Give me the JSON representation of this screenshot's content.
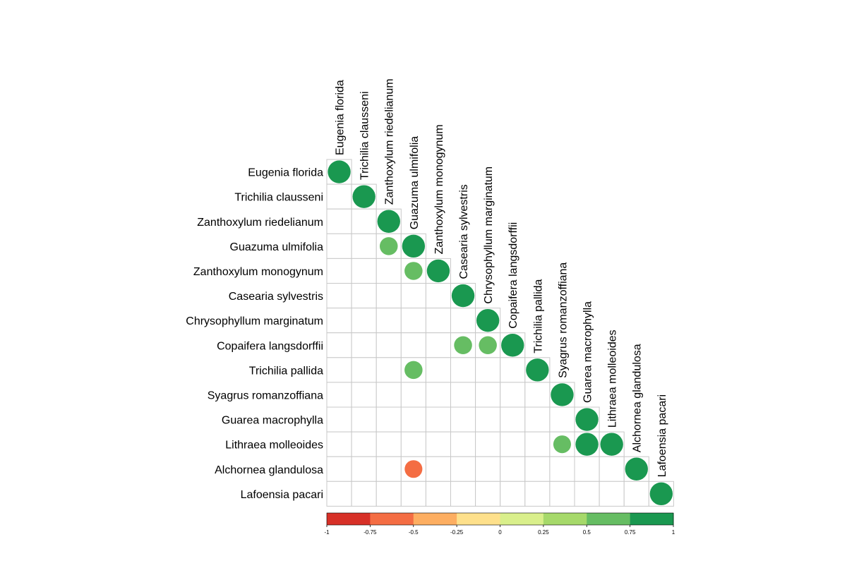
{
  "chart_data": {
    "type": "heatmap",
    "subtype": "correlation-circles-lower-triangle",
    "variables": [
      "Eugenia florida",
      "Trichilia clausseni",
      "Zanthoxylum riedelianum",
      "Guazuma ulmifolia",
      "Zanthoxylum monogynum",
      "Casearia sylvestris",
      "Chrysophyllum marginatum",
      "Copaifera langsdorffii",
      "Trichilia pallida",
      "Syagrus romanzoffiana",
      "Guarea macrophylla",
      "Lithraea molleoides",
      "Alchornea glandulosa",
      "Lafoensia pacari"
    ],
    "cells": [
      {
        "row": "Eugenia florida",
        "col": "Eugenia florida",
        "value": 1.0
      },
      {
        "row": "Trichilia clausseni",
        "col": "Trichilia clausseni",
        "value": 1.0
      },
      {
        "row": "Zanthoxylum riedelianum",
        "col": "Zanthoxylum riedelianum",
        "value": 1.0
      },
      {
        "row": "Guazuma ulmifolia",
        "col": "Zanthoxylum riedelianum",
        "value": 0.62
      },
      {
        "row": "Guazuma ulmifolia",
        "col": "Guazuma ulmifolia",
        "value": 1.0
      },
      {
        "row": "Zanthoxylum monogynum",
        "col": "Guazuma ulmifolia",
        "value": 0.62
      },
      {
        "row": "Zanthoxylum monogynum",
        "col": "Zanthoxylum monogynum",
        "value": 1.0
      },
      {
        "row": "Casearia sylvestris",
        "col": "Casearia sylvestris",
        "value": 1.0
      },
      {
        "row": "Chrysophyllum marginatum",
        "col": "Chrysophyllum marginatum",
        "value": 1.0
      },
      {
        "row": "Copaifera langsdorffii",
        "col": "Casearia sylvestris",
        "value": 0.62
      },
      {
        "row": "Copaifera langsdorffii",
        "col": "Chrysophyllum marginatum",
        "value": 0.62
      },
      {
        "row": "Copaifera langsdorffii",
        "col": "Copaifera langsdorffii",
        "value": 1.0
      },
      {
        "row": "Trichilia pallida",
        "col": "Guazuma ulmifolia",
        "value": 0.62
      },
      {
        "row": "Trichilia pallida",
        "col": "Trichilia pallida",
        "value": 1.0
      },
      {
        "row": "Syagrus romanzoffiana",
        "col": "Syagrus romanzoffiana",
        "value": 1.0
      },
      {
        "row": "Guarea macrophylla",
        "col": "Guarea macrophylla",
        "value": 1.0
      },
      {
        "row": "Lithraea molleoides",
        "col": "Syagrus romanzoffiana",
        "value": 0.6
      },
      {
        "row": "Lithraea molleoides",
        "col": "Guarea macrophylla",
        "value": 1.0
      },
      {
        "row": "Lithraea molleoides",
        "col": "Lithraea molleoides",
        "value": 1.0
      },
      {
        "row": "Alchornea glandulosa",
        "col": "Guazuma ulmifolia",
        "value": -0.6
      },
      {
        "row": "Alchornea glandulosa",
        "col": "Alchornea glandulosa",
        "value": 1.0
      },
      {
        "row": "Lafoensia pacari",
        "col": "Lafoensia pacari",
        "value": 1.0
      }
    ],
    "color_scale": {
      "breaks": [
        -1,
        -0.75,
        -0.5,
        -0.25,
        0,
        0.25,
        0.5,
        0.75,
        1
      ],
      "tick_labels": [
        "-1",
        "-0.75",
        "-0.5",
        "-0.25",
        "0",
        "0.25",
        "0.5",
        "0.75",
        "1"
      ],
      "colors": [
        "#d73027",
        "#f46d43",
        "#fdae61",
        "#fee08b",
        "#d9ef8b",
        "#a6d96a",
        "#66bd63",
        "#1a9850"
      ]
    },
    "grid": true,
    "legend_position": "bottom",
    "title": "",
    "xlabel": "",
    "ylabel": ""
  }
}
